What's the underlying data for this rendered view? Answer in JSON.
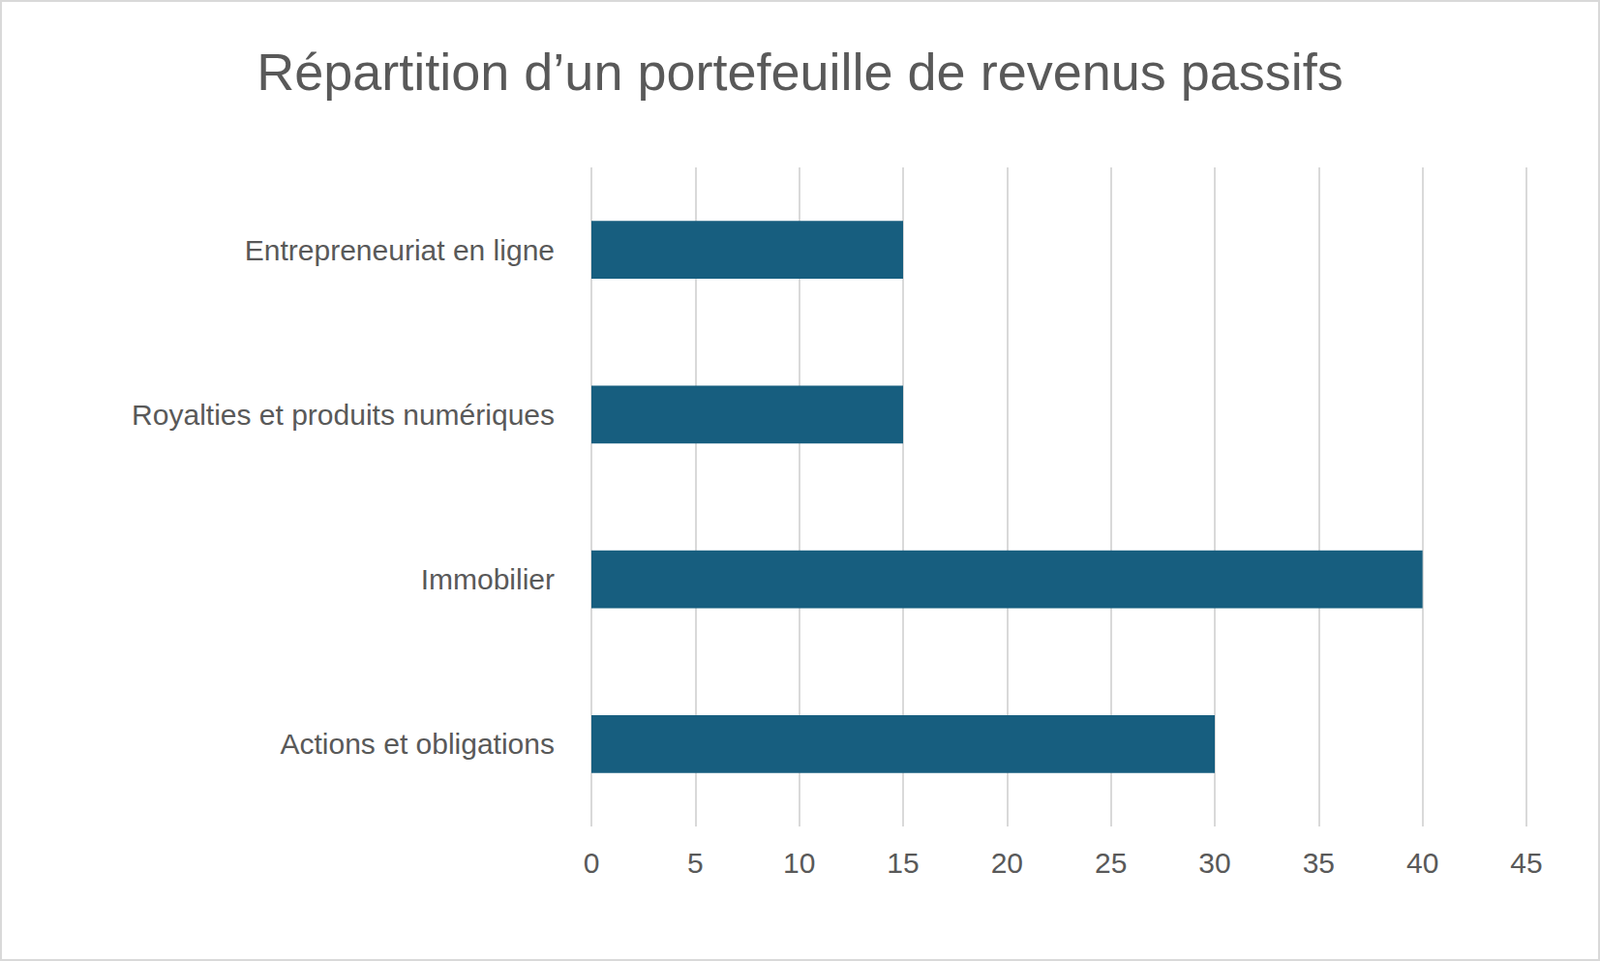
{
  "chart_data": {
    "type": "bar",
    "title": "Répartition d’un portefeuille de revenus passifs",
    "orientation": "horizontal",
    "categories": [
      "Entrepreneuriat en ligne",
      "Royalties et produits numériques",
      "Immobilier",
      "Actions et obligations"
    ],
    "values": [
      15,
      15,
      40,
      30
    ],
    "color": "#175e7f",
    "xlim": [
      0,
      45
    ],
    "xticks": [
      0,
      5,
      10,
      15,
      20,
      25,
      30,
      35,
      40,
      45
    ],
    "grid": true
  }
}
